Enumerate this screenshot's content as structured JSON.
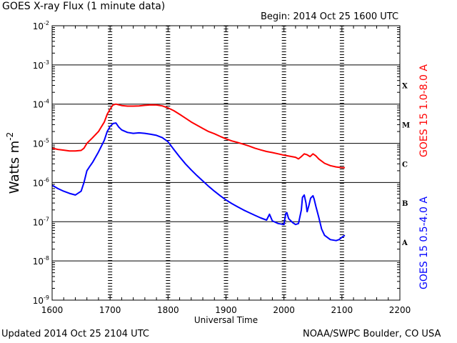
{
  "header": {
    "title": "GOES X-ray Flux (1 minute data)",
    "begin": "Begin: 2014 Oct 25 1600 UTC"
  },
  "footer": {
    "updated": "Updated 2014 Oct 25 2104 UTC",
    "credit": "NOAA/SWPC Boulder, CO USA"
  },
  "colors": {
    "long_channel": "#ff0000",
    "short_channel": "#0000ff",
    "grid": "#000000"
  },
  "chart_data": {
    "type": "line",
    "xlabel": "Universal Time",
    "ylabel": "Watts m",
    "ylabel_sup": "-2",
    "ylog": true,
    "ylim": [
      1e-09,
      0.01
    ],
    "xlim": [
      1600,
      2200
    ],
    "x_ticks": [
      "1600",
      "1700",
      "1800",
      "1900",
      "2000",
      "2100",
      "2200"
    ],
    "y_ticks": [
      {
        "base": "10",
        "exp": "-9",
        "value": 1e-09
      },
      {
        "base": "10",
        "exp": "-8",
        "value": 1e-08
      },
      {
        "base": "10",
        "exp": "-7",
        "value": 1e-07
      },
      {
        "base": "10",
        "exp": "-6",
        "value": 1e-06
      },
      {
        "base": "10",
        "exp": "-5",
        "value": 1e-05
      },
      {
        "base": "10",
        "exp": "-4",
        "value": 0.0001
      },
      {
        "base": "10",
        "exp": "-3",
        "value": 0.001
      },
      {
        "base": "10",
        "exp": "-2",
        "value": 0.01
      }
    ],
    "flare_classes": [
      {
        "label": "A",
        "value": 3e-08
      },
      {
        "label": "B",
        "value": 3e-07
      },
      {
        "label": "C",
        "value": 3e-06
      },
      {
        "label": "M",
        "value": 3e-05
      },
      {
        "label": "X",
        "value": 0.0003
      }
    ],
    "grid": "horizontal at each decade, dashed vertical at each hour",
    "series": [
      {
        "name": "GOES 15 1.0-8.0 A",
        "color": "#ff0000",
        "x": [
          1600,
          1610,
          1620,
          1630,
          1640,
          1650,
          1655,
          1660,
          1670,
          1680,
          1690,
          1695,
          1700,
          1705,
          1710,
          1715,
          1720,
          1730,
          1740,
          1750,
          1760,
          1770,
          1780,
          1790,
          1800,
          1810,
          1820,
          1830,
          1840,
          1850,
          1860,
          1870,
          1880,
          1890,
          1900,
          1910,
          1920,
          1930,
          1940,
          1950,
          1960,
          1970,
          1980,
          1990,
          2000,
          2010,
          2020,
          2025,
          2030,
          2035,
          2040,
          2045,
          2050,
          2055,
          2060,
          2070,
          2080,
          2090,
          2100,
          2105
        ],
        "y": [
          7.5e-06,
          7e-06,
          6.7e-06,
          6.4e-06,
          6.4e-06,
          6.6e-06,
          7.5e-06,
          1e-05,
          1.4e-05,
          2e-05,
          3.5e-05,
          5.5e-05,
          7.5e-05,
          9.5e-05,
          0.0001,
          9.6e-05,
          9.2e-05,
          8.9e-05,
          8.9e-05,
          9e-05,
          9.3e-05,
          9.6e-05,
          9.5e-05,
          9e-05,
          8e-05,
          6.8e-05,
          5.5e-05,
          4.4e-05,
          3.5e-05,
          2.9e-05,
          2.4e-05,
          2e-05,
          1.75e-05,
          1.5e-05,
          1.3e-05,
          1.15e-05,
          1.05e-05,
          9.5e-06,
          8.5e-06,
          7.5e-06,
          6.8e-06,
          6.2e-06,
          5.8e-06,
          5.4e-06,
          5e-06,
          4.7e-06,
          4.4e-06,
          4e-06,
          4.6e-06,
          5.4e-06,
          5.1e-06,
          4.6e-06,
          5.4e-06,
          4.8e-06,
          4e-06,
          3.1e-06,
          2.7e-06,
          2.5e-06,
          2.4e-06,
          2.4e-06
        ]
      },
      {
        "name": "GOES 15 0.5-4.0 A",
        "color": "#0000ff",
        "x": [
          1600,
          1610,
          1620,
          1630,
          1640,
          1650,
          1655,
          1660,
          1665,
          1670,
          1680,
          1690,
          1695,
          1700,
          1705,
          1710,
          1715,
          1720,
          1730,
          1740,
          1750,
          1760,
          1770,
          1780,
          1790,
          1800,
          1810,
          1820,
          1830,
          1840,
          1850,
          1860,
          1870,
          1880,
          1890,
          1900,
          1910,
          1920,
          1930,
          1940,
          1950,
          1960,
          1970,
          1975,
          1980,
          1990,
          2000,
          2003,
          2005,
          2008,
          2015,
          2020,
          2025,
          2030,
          2032,
          2035,
          2038,
          2040,
          2043,
          2046,
          2050,
          2052,
          2055,
          2060,
          2065,
          2070,
          2080,
          2090,
          2095,
          2100,
          2105
        ],
        "y": [
          8.5e-07,
          7e-07,
          6e-07,
          5.3e-07,
          4.8e-07,
          6e-07,
          1e-06,
          2e-06,
          2.6e-06,
          3.3e-06,
          6e-06,
          1.2e-05,
          2e-05,
          2.7e-05,
          3.2e-05,
          3.3e-05,
          2.6e-05,
          2.2e-05,
          1.9e-05,
          1.8e-05,
          1.85e-05,
          1.8e-05,
          1.7e-05,
          1.6e-05,
          1.4e-05,
          1.1e-05,
          7e-06,
          4.5e-06,
          3e-06,
          2.1e-06,
          1.5e-06,
          1.1e-06,
          8e-07,
          6e-07,
          4.6e-07,
          3.6e-07,
          2.9e-07,
          2.4e-07,
          2e-07,
          1.7e-07,
          1.45e-07,
          1.25e-07,
          1.1e-07,
          1.55e-07,
          1.05e-07,
          9e-08,
          8.5e-08,
          1.6e-07,
          1.7e-07,
          1.2e-07,
          9.5e-08,
          8.5e-08,
          9e-08,
          2e-07,
          4.2e-07,
          4.8e-07,
          3e-07,
          1.8e-07,
          2.6e-07,
          4e-07,
          4.6e-07,
          3.8e-07,
          2.5e-07,
          1.3e-07,
          6.5e-08,
          4.5e-08,
          3.5e-08,
          3.3e-08,
          3.5e-08,
          4e-08,
          4.5e-08
        ]
      }
    ]
  }
}
